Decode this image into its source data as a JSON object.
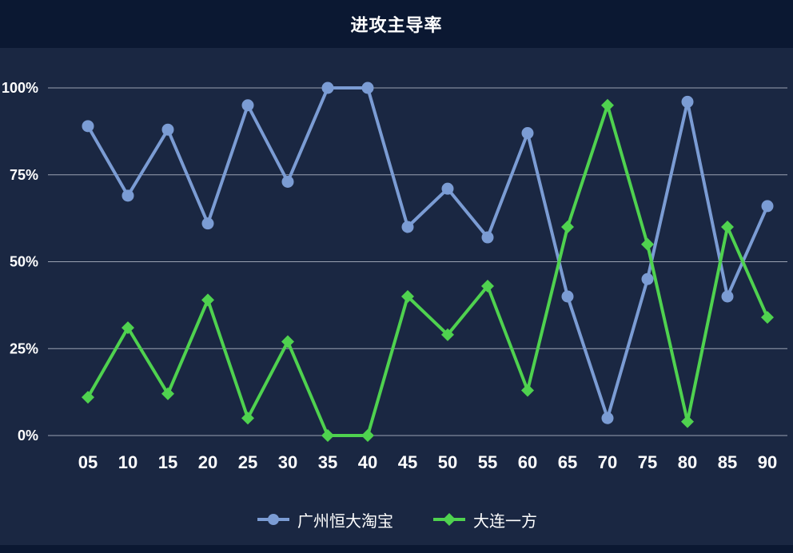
{
  "title": "进攻主导率",
  "colors": {
    "background_top": "#0b1832",
    "background_panel": "#1a2742",
    "grid": "#9aa1b2",
    "text": "#ffffff"
  },
  "chart_data": {
    "type": "line",
    "title": "进攻主导率",
    "x": [
      "05",
      "10",
      "15",
      "20",
      "25",
      "30",
      "35",
      "40",
      "45",
      "50",
      "55",
      "60",
      "65",
      "70",
      "75",
      "80",
      "85",
      "90"
    ],
    "series": [
      {
        "name": "广州恒大淘宝",
        "color": "#7b9cd4",
        "marker": "circle",
        "values": [
          89,
          69,
          88,
          61,
          95,
          73,
          100,
          100,
          60,
          71,
          57,
          87,
          40,
          5,
          45,
          96,
          40,
          66
        ]
      },
      {
        "name": "大连一方",
        "color": "#4fd24f",
        "marker": "diamond",
        "values": [
          11,
          31,
          12,
          39,
          5,
          27,
          0,
          0,
          40,
          29,
          43,
          13,
          60,
          95,
          55,
          4,
          60,
          34
        ]
      }
    ],
    "ytick_values": [
      0,
      25,
      50,
      75,
      100
    ],
    "ytick_labels": [
      "0%",
      "25%",
      "50%",
      "75%",
      "100%"
    ],
    "ylim": [
      0,
      100
    ],
    "grid": true,
    "legend_position": "bottom"
  }
}
